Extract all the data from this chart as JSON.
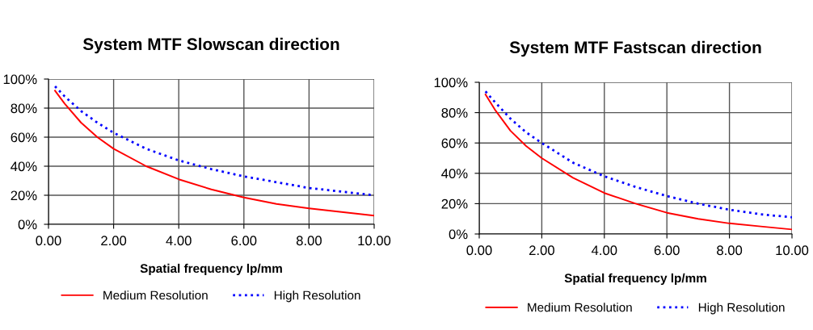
{
  "chart_data": [
    {
      "type": "line",
      "title": "System MTF Slowscan direction",
      "xlabel": "Spatial frequency lp/mm",
      "x": [
        0.2,
        0.5,
        1,
        1.5,
        2,
        3,
        4,
        5,
        6,
        7,
        8,
        9,
        10
      ],
      "series": [
        {
          "name": "Medium Resolution",
          "color": "#ff0000",
          "line_style": "solid",
          "values": [
            92,
            83,
            70,
            60,
            52,
            40,
            31,
            24,
            18.5,
            14,
            11,
            8.5,
            6
          ]
        },
        {
          "name": "High Resolution",
          "color": "#0000ff",
          "line_style": "dotted",
          "values": [
            95,
            88,
            78,
            70,
            63,
            52,
            44,
            38,
            33,
            29,
            25,
            22.5,
            20
          ]
        }
      ],
      "xlim": [
        0,
        10
      ],
      "ylim": [
        0,
        100
      ],
      "xticks": [
        {
          "value": 0,
          "label": "0.00"
        },
        {
          "value": 2,
          "label": "2.00"
        },
        {
          "value": 4,
          "label": "4.00"
        },
        {
          "value": 6,
          "label": "6.00"
        },
        {
          "value": 8,
          "label": "8.00"
        },
        {
          "value": 10,
          "label": "10.00"
        }
      ],
      "yticks": [
        {
          "value": 0,
          "label": "0%"
        },
        {
          "value": 20,
          "label": "20%"
        },
        {
          "value": 40,
          "label": "40%"
        },
        {
          "value": 60,
          "label": "60%"
        },
        {
          "value": 80,
          "label": "80%"
        },
        {
          "value": 100,
          "label": "100%"
        }
      ],
      "grid": true,
      "legend": "bottom",
      "marker": "none"
    },
    {
      "type": "line",
      "title": "System MTF Fastscan direction",
      "xlabel": "Spatial frequency lp/mm",
      "x": [
        0.2,
        0.5,
        1,
        1.5,
        2,
        3,
        4,
        5,
        6,
        7,
        8,
        9,
        10
      ],
      "series": [
        {
          "name": "Medium Resolution",
          "color": "#ff0000",
          "line_style": "solid",
          "values": [
            92,
            82,
            68,
            58,
            50,
            37,
            27,
            20,
            14,
            10,
            7,
            5,
            3
          ]
        },
        {
          "name": "High Resolution",
          "color": "#0000ff",
          "line_style": "dotted",
          "values": [
            94,
            87,
            76,
            67,
            60,
            47,
            38,
            31,
            25,
            20,
            16,
            13,
            11
          ]
        }
      ],
      "xlim": [
        0,
        10
      ],
      "ylim": [
        0,
        100
      ],
      "xticks": [
        {
          "value": 0,
          "label": "0.00"
        },
        {
          "value": 2,
          "label": "2.00"
        },
        {
          "value": 4,
          "label": "4.00"
        },
        {
          "value": 6,
          "label": "6.00"
        },
        {
          "value": 8,
          "label": "8.00"
        },
        {
          "value": 10,
          "label": "10.00"
        }
      ],
      "yticks": [
        {
          "value": 0,
          "label": "0%"
        },
        {
          "value": 20,
          "label": "20%"
        },
        {
          "value": 40,
          "label": "40%"
        },
        {
          "value": 60,
          "label": "60%"
        },
        {
          "value": 80,
          "label": "80%"
        },
        {
          "value": 100,
          "label": "100%"
        }
      ],
      "grid": true,
      "legend": "bottom",
      "marker": "none"
    }
  ]
}
